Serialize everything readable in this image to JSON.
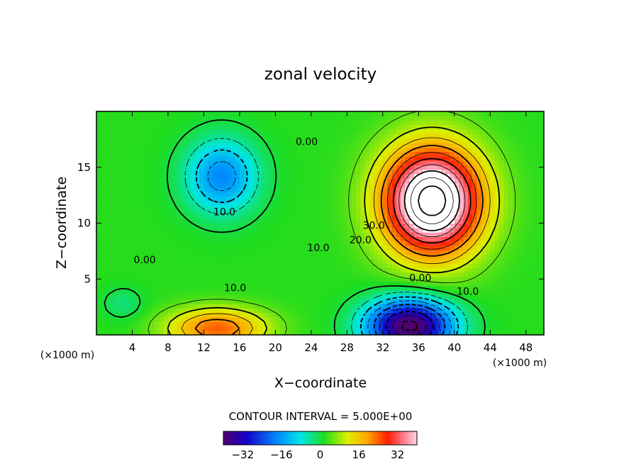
{
  "chart_data": {
    "type": "heatmap",
    "title": "zonal velocity",
    "xlabel": "X−coordinate",
    "ylabel": "Z−coordinate",
    "x_unit_left": "(×1000 m)",
    "x_unit_right": "(×1000 m)",
    "xlim": [
      0,
      50
    ],
    "ylim": [
      0,
      20
    ],
    "x_ticks": [
      4,
      8,
      12,
      16,
      20,
      24,
      28,
      32,
      36,
      40,
      44,
      48
    ],
    "y_ticks": [
      5,
      10,
      15
    ],
    "contour_interval_text": "CONTOUR INTERVAL = 5.000E+00",
    "contour_interval": 5,
    "colorbar": {
      "ticks": [
        -32,
        -16,
        0,
        16,
        32
      ],
      "tick_labels": [
        "−32",
        "−16",
        "0",
        "16",
        "32"
      ],
      "range": [
        -40,
        40
      ]
    },
    "contour_labels": [
      {
        "text": "10.0",
        "x": 14.3,
        "y": 10.7
      },
      {
        "text": "0.00",
        "x": 23.5,
        "y": 17.0
      },
      {
        "text": "0.00",
        "x": 5.4,
        "y": 6.4
      },
      {
        "text": "10.0",
        "x": 15.5,
        "y": 3.9
      },
      {
        "text": "10.0",
        "x": 24.8,
        "y": 7.5
      },
      {
        "text": "20.0",
        "x": 29.5,
        "y": 8.2
      },
      {
        "text": "30.0",
        "x": 31.0,
        "y": 9.5
      },
      {
        "text": "0.00",
        "x": 36.2,
        "y": 4.8
      },
      {
        "text": "10.0",
        "x": 41.5,
        "y": 3.6
      }
    ],
    "features": [
      {
        "x": 37.5,
        "y": 12.0,
        "sx": 5.5,
        "sy": 4.8,
        "amp": 52
      },
      {
        "x": 35.0,
        "y": 0.8,
        "sx": 4.8,
        "sy": 2.4,
        "amp": -44
      },
      {
        "x": 14.0,
        "y": 14.2,
        "sx": 4.0,
        "sy": 3.3,
        "amp": -20
      },
      {
        "x": 13.5,
        "y": 0.6,
        "sx": 5.5,
        "sy": 1.8,
        "amp": 22
      },
      {
        "x": 3.0,
        "y": 2.8,
        "sx": 2.2,
        "sy": 1.4,
        "amp": -5
      }
    ]
  }
}
